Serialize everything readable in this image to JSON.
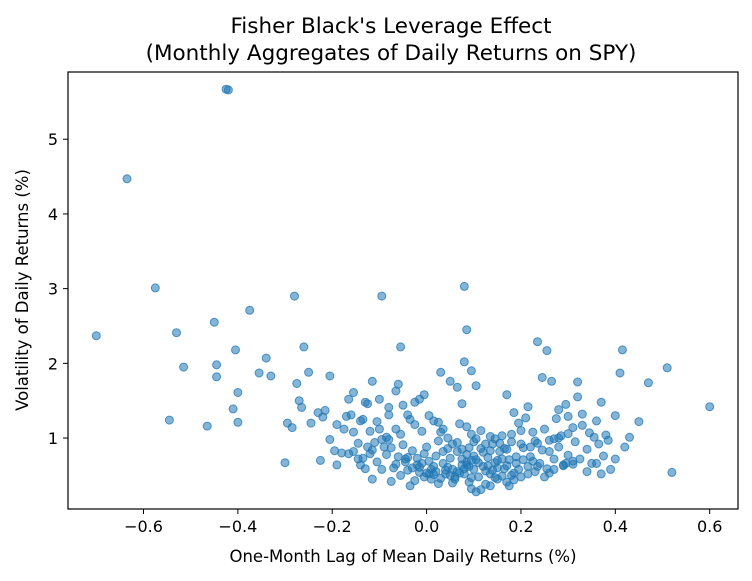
{
  "chart_data": {
    "type": "scatter",
    "title": "Fisher Black's Leverage Effect",
    "subtitle": "(Monthly Aggregates of Daily Returns on SPY)",
    "xlabel": "One-Month Lag of Mean Daily Returns (%)",
    "ylabel": "Volatility of Daily Returns (%)",
    "xlim": [
      -0.76,
      0.66
    ],
    "ylim": [
      0.05,
      5.9
    ],
    "xticks": [
      -0.6,
      -0.4,
      -0.2,
      0.0,
      0.2,
      0.4,
      0.6
    ],
    "xtick_labels": [
      "−0.6",
      "−0.4",
      "−0.2",
      "0.0",
      "0.2",
      "0.4",
      "0.6"
    ],
    "yticks": [
      1,
      2,
      3,
      4,
      5
    ],
    "ytick_labels": [
      "1",
      "2",
      "3",
      "4",
      "5"
    ],
    "grid": false,
    "color": "#1f77b4",
    "points": [
      [
        -0.425,
        5.67
      ],
      [
        -0.42,
        5.66
      ],
      [
        -0.635,
        4.47
      ],
      [
        -0.575,
        3.01
      ],
      [
        -0.7,
        2.37
      ],
      [
        -0.53,
        2.41
      ],
      [
        -0.45,
        2.55
      ],
      [
        -0.28,
        2.9
      ],
      [
        -0.375,
        2.71
      ],
      [
        -0.095,
        2.9
      ],
      [
        -0.405,
        2.18
      ],
      [
        -0.445,
        1.98
      ],
      [
        -0.515,
        1.95
      ],
      [
        -0.34,
        2.07
      ],
      [
        -0.26,
        2.22
      ],
      [
        -0.445,
        1.82
      ],
      [
        -0.355,
        1.87
      ],
      [
        -0.33,
        1.83
      ],
      [
        -0.25,
        1.88
      ],
      [
        -0.205,
        1.83
      ],
      [
        -0.4,
        1.61
      ],
      [
        -0.41,
        1.39
      ],
      [
        -0.545,
        1.24
      ],
      [
        -0.4,
        1.21
      ],
      [
        -0.465,
        1.16
      ],
      [
        -0.295,
        1.2
      ],
      [
        -0.285,
        1.14
      ],
      [
        -0.275,
        1.73
      ],
      [
        -0.27,
        1.5
      ],
      [
        -0.265,
        1.41
      ],
      [
        -0.245,
        1.2
      ],
      [
        -0.23,
        1.34
      ],
      [
        -0.22,
        1.28
      ],
      [
        -0.215,
        1.37
      ],
      [
        -0.19,
        1.18
      ],
      [
        -0.165,
        1.52
      ],
      [
        -0.155,
        1.61
      ],
      [
        -0.13,
        1.48
      ],
      [
        -0.115,
        1.76
      ],
      [
        -0.17,
        1.29
      ],
      [
        -0.16,
        1.31
      ],
      [
        -0.14,
        1.23
      ],
      [
        -0.125,
        1.46
      ],
      [
        -0.1,
        1.52
      ],
      [
        -0.08,
        1.41
      ],
      [
        -0.06,
        1.72
      ],
      [
        -0.055,
        2.22
      ],
      [
        -0.065,
        1.63
      ],
      [
        -0.05,
        1.44
      ],
      [
        -0.04,
        1.31
      ],
      [
        -0.025,
        1.48
      ],
      [
        -0.015,
        1.52
      ],
      [
        -0.005,
        1.58
      ],
      [
        0.03,
        1.88
      ],
      [
        0.05,
        1.76
      ],
      [
        0.065,
        1.68
      ],
      [
        0.075,
        1.46
      ],
      [
        0.08,
        2.02
      ],
      [
        0.085,
        2.45
      ],
      [
        0.08,
        3.03
      ],
      [
        0.095,
        1.9
      ],
      [
        0.105,
        1.7
      ],
      [
        -0.3,
        0.67
      ],
      [
        -0.225,
        0.7
      ],
      [
        -0.205,
        0.98
      ],
      [
        -0.195,
        0.83
      ],
      [
        -0.19,
        0.64
      ],
      [
        -0.18,
        0.8
      ],
      [
        -0.165,
        0.79
      ],
      [
        -0.155,
        1.08
      ],
      [
        -0.145,
        0.72
      ],
      [
        -0.14,
        0.64
      ],
      [
        -0.13,
        0.59
      ],
      [
        -0.12,
        0.79
      ],
      [
        -0.115,
        0.84
      ],
      [
        -0.11,
        0.94
      ],
      [
        -0.105,
        1.22
      ],
      [
        -0.1,
        1.12
      ],
      [
        -0.095,
        0.98
      ],
      [
        -0.09,
        0.88
      ],
      [
        -0.085,
        0.78
      ],
      [
        -0.08,
        0.98
      ],
      [
        -0.075,
        0.87
      ],
      [
        -0.07,
        0.6
      ],
      [
        -0.065,
        1.12
      ],
      [
        -0.06,
        0.75
      ],
      [
        -0.055,
        1.05
      ],
      [
        -0.05,
        0.91
      ],
      [
        -0.045,
        0.72
      ],
      [
        -0.04,
        0.57
      ],
      [
        -0.035,
        1.25
      ],
      [
        -0.03,
        0.83
      ],
      [
        -0.025,
        1.18
      ],
      [
        -0.02,
        0.64
      ],
      [
        -0.015,
        0.54
      ],
      [
        -0.01,
        1.09
      ],
      [
        -0.005,
        0.79
      ],
      [
        0.0,
        0.88
      ],
      [
        0.005,
        0.52
      ],
      [
        0.01,
        0.45
      ],
      [
        0.015,
        0.62
      ],
      [
        0.02,
        0.76
      ],
      [
        0.025,
        0.96
      ],
      [
        0.03,
        1.08
      ],
      [
        0.035,
        0.66
      ],
      [
        0.04,
        0.52
      ],
      [
        0.045,
        0.86
      ],
      [
        0.05,
        0.73
      ],
      [
        0.055,
        0.58
      ],
      [
        0.06,
        0.45
      ],
      [
        0.065,
        0.94
      ],
      [
        0.07,
        1.19
      ],
      [
        0.075,
        0.64
      ],
      [
        0.08,
        0.52
      ],
      [
        0.085,
        0.78
      ],
      [
        0.09,
        0.41
      ],
      [
        0.095,
        0.32
      ],
      [
        0.1,
        0.58
      ],
      [
        0.105,
        0.71
      ],
      [
        0.11,
        0.48
      ],
      [
        0.115,
        0.86
      ],
      [
        0.12,
        0.62
      ],
      [
        0.125,
        0.38
      ],
      [
        0.13,
        0.74
      ],
      [
        0.135,
        0.52
      ],
      [
        0.14,
        0.92
      ],
      [
        0.145,
        0.67
      ],
      [
        0.15,
        0.45
      ],
      [
        0.155,
        0.82
      ],
      [
        0.16,
        1.03
      ],
      [
        0.165,
        0.59
      ],
      [
        0.17,
        0.41
      ],
      [
        0.175,
        0.71
      ],
      [
        0.18,
        0.95
      ],
      [
        0.185,
        0.53
      ],
      [
        0.19,
        0.66
      ],
      [
        0.195,
        1.2
      ],
      [
        0.2,
        0.48
      ],
      [
        0.205,
        0.87
      ],
      [
        0.21,
        1.27
      ],
      [
        0.215,
        0.62
      ],
      [
        0.22,
        0.75
      ],
      [
        0.225,
        1.08
      ],
      [
        0.23,
        0.55
      ],
      [
        0.235,
        0.93
      ],
      [
        0.24,
        0.66
      ],
      [
        0.245,
        0.84
      ],
      [
        0.25,
        1.12
      ],
      [
        0.255,
        0.59
      ],
      [
        0.26,
        0.97
      ],
      [
        0.27,
        0.72
      ],
      [
        0.275,
        1.26
      ],
      [
        0.28,
        0.88
      ],
      [
        0.285,
        1.03
      ],
      [
        0.29,
        0.63
      ],
      [
        0.295,
        1.45
      ],
      [
        0.3,
        0.77
      ],
      [
        0.31,
        1.14
      ],
      [
        0.315,
        0.95
      ],
      [
        0.32,
        1.55
      ],
      [
        0.325,
        0.72
      ],
      [
        0.33,
        1.32
      ],
      [
        0.34,
        0.85
      ],
      [
        0.345,
        1.07
      ],
      [
        0.35,
        0.66
      ],
      [
        0.36,
        1.23
      ],
      [
        0.365,
        0.92
      ],
      [
        0.37,
        1.48
      ],
      [
        0.375,
        0.76
      ],
      [
        0.38,
        1.04
      ],
      [
        0.39,
        0.58
      ],
      [
        0.4,
        1.3
      ],
      [
        0.41,
        1.87
      ],
      [
        0.415,
        2.18
      ],
      [
        0.42,
        0.88
      ],
      [
        0.43,
        1.01
      ],
      [
        0.45,
        1.22
      ],
      [
        0.47,
        1.74
      ],
      [
        0.51,
        1.94
      ],
      [
        0.52,
        0.54
      ],
      [
        0.6,
        1.42
      ],
      [
        0.17,
        1.58
      ],
      [
        0.185,
        1.34
      ],
      [
        0.2,
        1.1
      ],
      [
        0.215,
        1.42
      ],
      [
        0.235,
        2.29
      ],
      [
        0.245,
        1.81
      ],
      [
        0.255,
        2.17
      ],
      [
        0.265,
        1.76
      ],
      [
        0.32,
        1.75
      ],
      [
        0.28,
        1.38
      ],
      [
        0.3,
        1.06
      ],
      [
        0.33,
        1.17
      ],
      [
        0.355,
        1.01
      ],
      [
        0.37,
        0.52
      ],
      [
        0.385,
        0.97
      ],
      [
        0.4,
        0.72
      ],
      [
        0.34,
        0.55
      ],
      [
        0.36,
        0.66
      ],
      [
        0.31,
        0.69
      ],
      [
        0.295,
        0.66
      ],
      [
        0.29,
        0.64
      ],
      [
        0.27,
        0.58
      ],
      [
        0.26,
        0.53
      ],
      [
        0.25,
        0.48
      ],
      [
        0.235,
        0.62
      ],
      [
        0.225,
        0.69
      ],
      [
        0.215,
        0.52
      ],
      [
        0.205,
        0.71
      ],
      [
        0.195,
        0.58
      ],
      [
        0.185,
        0.44
      ],
      [
        0.175,
        0.36
      ],
      [
        0.165,
        0.86
      ],
      [
        0.155,
        0.93
      ],
      [
        0.145,
        0.99
      ],
      [
        0.135,
        1.02
      ],
      [
        0.125,
        0.56
      ],
      [
        0.115,
        0.31
      ],
      [
        0.105,
        0.28
      ],
      [
        0.095,
        0.47
      ],
      [
        0.085,
        0.64
      ],
      [
        0.075,
        0.85
      ],
      [
        0.065,
        0.55
      ],
      [
        0.055,
        0.4
      ],
      [
        0.045,
        0.61
      ],
      [
        0.035,
        0.82
      ],
      [
        0.025,
        0.39
      ],
      [
        0.015,
        0.51
      ],
      [
        0.005,
        0.69
      ],
      [
        -0.005,
        0.48
      ],
      [
        -0.015,
        0.61
      ],
      [
        -0.025,
        0.43
      ],
      [
        -0.035,
        0.36
      ],
      [
        -0.045,
        0.68
      ],
      [
        -0.055,
        0.5
      ],
      [
        -0.065,
        0.65
      ],
      [
        -0.075,
        0.42
      ],
      [
        -0.085,
        1.01
      ],
      [
        -0.095,
        0.58
      ],
      [
        -0.105,
        0.68
      ],
      [
        -0.115,
        0.45
      ],
      [
        -0.125,
        0.88
      ],
      [
        -0.135,
        0.73
      ],
      [
        -0.145,
        0.93
      ],
      [
        -0.155,
        0.82
      ],
      [
        0.09,
        0.62
      ],
      [
        0.095,
        0.7
      ],
      [
        0.1,
        0.76
      ],
      [
        0.08,
        0.59
      ],
      [
        0.07,
        0.53
      ],
      [
        0.06,
        0.48
      ],
      [
        0.05,
        0.5
      ],
      [
        0.04,
        0.57
      ],
      [
        0.03,
        0.46
      ],
      [
        0.02,
        0.55
      ],
      [
        0.01,
        0.58
      ],
      [
        0.0,
        0.53
      ],
      [
        0.11,
        0.67
      ],
      [
        0.12,
        0.81
      ],
      [
        0.13,
        0.63
      ],
      [
        0.14,
        0.57
      ],
      [
        0.15,
        0.7
      ],
      [
        0.16,
        0.49
      ],
      [
        0.17,
        0.63
      ],
      [
        0.18,
        0.5
      ],
      [
        0.075,
        0.72
      ],
      [
        0.085,
        0.68
      ],
      [
        0.09,
        0.87
      ],
      [
        0.1,
        0.95
      ],
      [
        0.065,
        0.82
      ],
      [
        0.055,
        0.92
      ],
      [
        0.045,
        1.0
      ],
      [
        0.035,
        1.12
      ],
      [
        0.025,
        1.21
      ],
      [
        0.085,
        1.15
      ],
      [
        0.095,
        1.05
      ],
      [
        0.105,
        0.99
      ],
      [
        0.115,
        1.1
      ],
      [
        0.125,
        0.92
      ],
      [
        0.135,
        0.83
      ],
      [
        -0.01,
        0.66
      ],
      [
        -0.02,
        0.73
      ],
      [
        -0.03,
        0.6
      ],
      [
        -0.04,
        0.74
      ],
      [
        0.005,
        1.3
      ],
      [
        0.015,
        1.23
      ],
      [
        -0.08,
        1.31
      ],
      [
        -0.12,
        1.09
      ],
      [
        -0.135,
        1.25
      ],
      [
        -0.175,
        1.12
      ],
      [
        0.22,
        0.88
      ],
      [
        0.23,
        0.96
      ],
      [
        0.26,
        0.82
      ],
      [
        0.27,
        0.99
      ],
      [
        0.28,
        1.0
      ],
      [
        0.3,
        1.29
      ],
      [
        0.31,
        0.65
      ],
      [
        0.19,
        0.75
      ],
      [
        0.2,
        0.92
      ],
      [
        0.18,
        1.05
      ],
      [
        0.17,
        0.85
      ],
      [
        0.16,
        0.72
      ],
      [
        0.15,
        0.6
      ],
      [
        0.145,
        0.47
      ],
      [
        0.135,
        0.36
      ]
    ]
  }
}
